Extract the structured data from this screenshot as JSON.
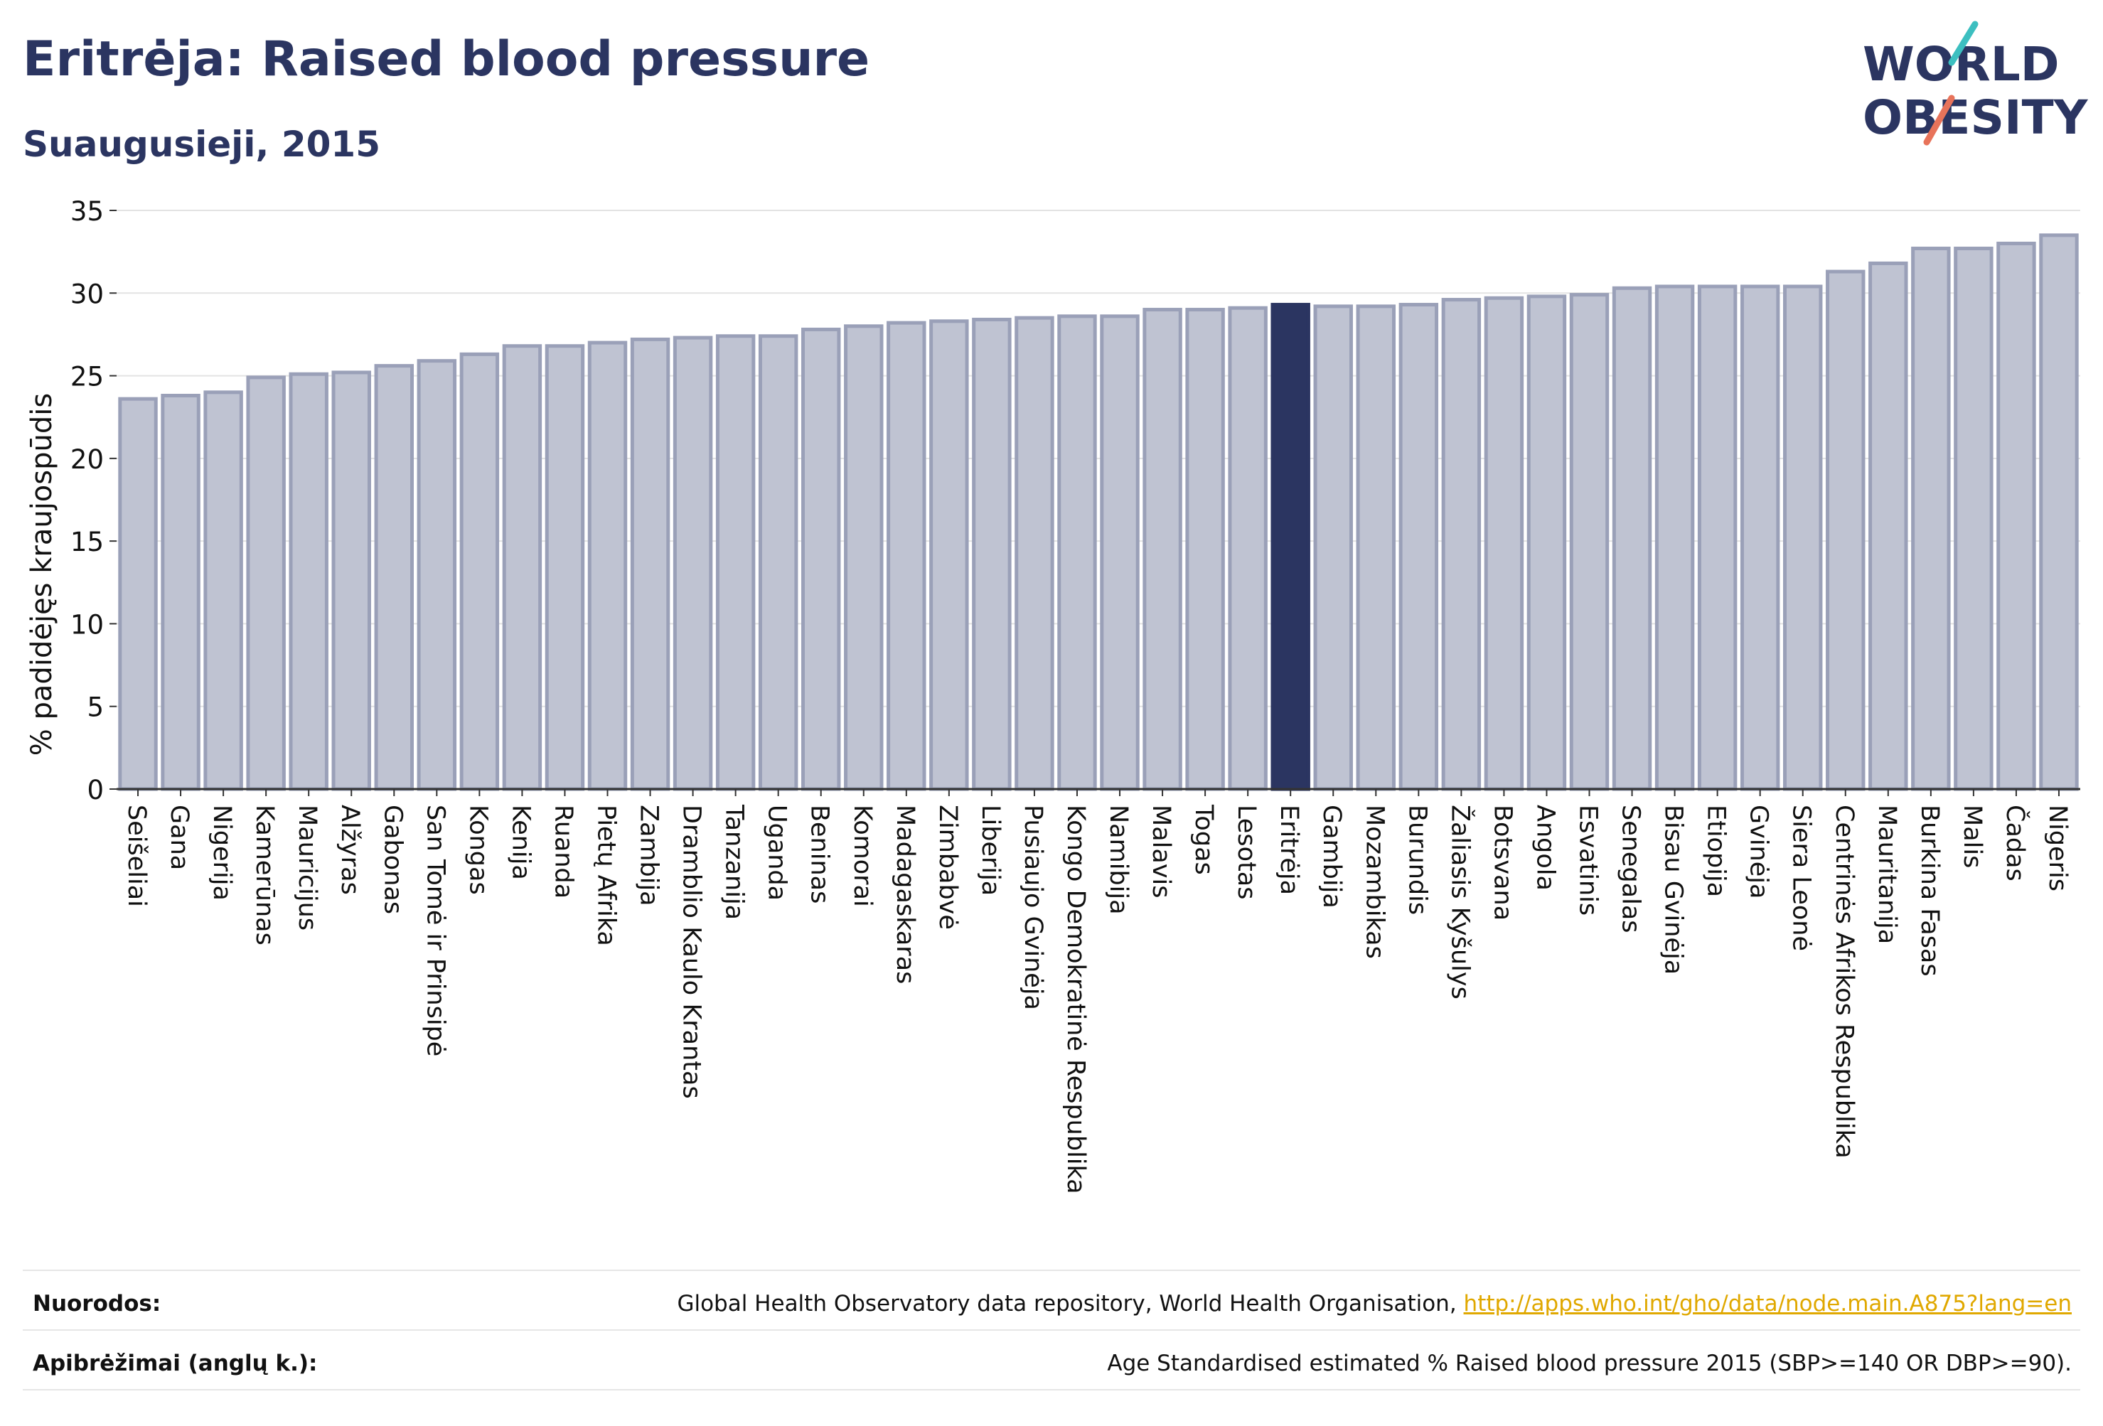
{
  "header": {
    "title": "Eritrėja: Raised blood pressure",
    "subtitle": "Suaugusieji, 2015"
  },
  "logo": {
    "line1": "WORLD",
    "line2": "OBESITY",
    "text_color": "#2b3561",
    "slash_top_color": "#3cbfc0",
    "slash_bottom_color": "#e8735a"
  },
  "colors": {
    "bar_fill": "#bfc3d2",
    "bar_stroke": "#9aa0b8",
    "highlight": "#2b3561",
    "grid": "#e3e3e3",
    "axis": "#333333"
  },
  "chart_data": {
    "type": "bar",
    "ylabel": "% padidėjęs kraujospūdis",
    "ylim": [
      0,
      35
    ],
    "yticks": [
      0,
      5,
      10,
      15,
      20,
      25,
      30,
      35
    ],
    "grid": true,
    "highlight": "Eritrėja",
    "categories": [
      "Seišeliai",
      "Gana",
      "Nigerija",
      "Kamerūnas",
      "Mauricijus",
      "Alžyras",
      "Gabonas",
      "San Tomė ir Prinsipė",
      "Kongas",
      "Kenija",
      "Ruanda",
      "Pietų Afrika",
      "Zambija",
      "Dramblio Kaulo Krantas",
      "Tanzanija",
      "Uganda",
      "Beninas",
      "Komorai",
      "Madagaskaras",
      "Zimbabvė",
      "Liberija",
      "Pusiaujo Gvinėja",
      "Kongo Demokratinė Respublika",
      "Namibija",
      "Malavis",
      "Togas",
      "Lesotas",
      "Eritrėja",
      "Gambija",
      "Mozambikas",
      "Burundis",
      "Žaliasis Kyšulys",
      "Botsvana",
      "Angola",
      "Esvatinis",
      "Senegalas",
      "Bisau Gvinėja",
      "Etiopija",
      "Gvinėja",
      "Siera Leonė",
      "Centrinės Afrikos Respublika",
      "Mauritanija",
      "Burkina Fasas",
      "Malis",
      "Čadas",
      "Nigeris"
    ],
    "values": [
      23.6,
      23.8,
      24.0,
      24.9,
      25.1,
      25.2,
      25.6,
      25.9,
      26.3,
      26.8,
      26.8,
      27.0,
      27.2,
      27.3,
      27.4,
      27.4,
      27.8,
      28.0,
      28.2,
      28.3,
      28.4,
      28.5,
      28.6,
      28.6,
      29.0,
      29.0,
      29.1,
      29.3,
      29.2,
      29.2,
      29.3,
      29.6,
      29.7,
      29.8,
      29.9,
      30.3,
      30.4,
      30.4,
      30.4,
      30.4,
      31.3,
      31.8,
      32.7,
      32.7,
      33.0,
      33.5
    ]
  },
  "footer": {
    "sources_label": "Nuorodos:",
    "sources_text": "Global Health Observatory data repository, World Health Organisation, ",
    "sources_link": "http://apps.who.int/gho/data/node.main.A875?lang=en",
    "definitions_label": "Apibrėžimai (anglų k.):",
    "definitions_text": "Age Standardised estimated % Raised blood pressure 2015 (SBP>=140 OR DBP>=90)."
  }
}
